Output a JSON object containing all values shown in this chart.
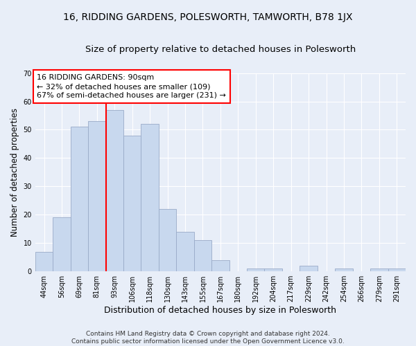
{
  "title": "16, RIDDING GARDENS, POLESWORTH, TAMWORTH, B78 1JX",
  "subtitle": "Size of property relative to detached houses in Polesworth",
  "xlabel": "Distribution of detached houses by size in Polesworth",
  "ylabel": "Number of detached properties",
  "categories": [
    "44sqm",
    "56sqm",
    "69sqm",
    "81sqm",
    "93sqm",
    "106sqm",
    "118sqm",
    "130sqm",
    "143sqm",
    "155sqm",
    "167sqm",
    "180sqm",
    "192sqm",
    "204sqm",
    "217sqm",
    "229sqm",
    "242sqm",
    "254sqm",
    "266sqm",
    "279sqm",
    "291sqm"
  ],
  "values": [
    7,
    19,
    51,
    53,
    57,
    48,
    52,
    22,
    14,
    11,
    4,
    0,
    1,
    1,
    0,
    2,
    0,
    1,
    0,
    1,
    1
  ],
  "bar_color": "#c8d8ee",
  "bar_edgecolor": "#99aac8",
  "annotation_text": "16 RIDDING GARDENS: 90sqm\n← 32% of detached houses are smaller (109)\n67% of semi-detached houses are larger (231) →",
  "annotation_box_color": "white",
  "annotation_box_edgecolor": "red",
  "vline_bar_index": 4,
  "vline_color": "red",
  "ylim": [
    0,
    70
  ],
  "yticks": [
    0,
    10,
    20,
    30,
    40,
    50,
    60,
    70
  ],
  "background_color": "#e8eef8",
  "grid_color": "white",
  "footer_line1": "Contains HM Land Registry data © Crown copyright and database right 2024.",
  "footer_line2": "Contains public sector information licensed under the Open Government Licence v3.0.",
  "title_fontsize": 10,
  "subtitle_fontsize": 9.5,
  "xlabel_fontsize": 9,
  "ylabel_fontsize": 8.5,
  "tick_fontsize": 7,
  "annotation_fontsize": 8,
  "footer_fontsize": 6.5
}
